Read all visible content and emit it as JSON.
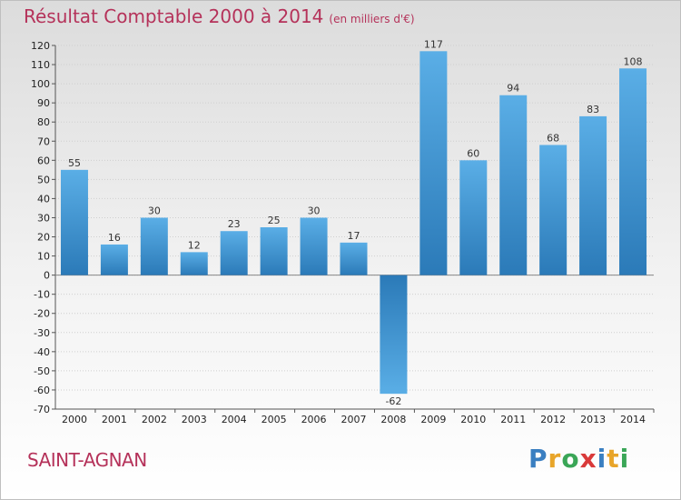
{
  "chart_data": {
    "type": "bar",
    "title": "Résultat Comptable 2000 à 2014",
    "subtitle": "(en milliers d'€)",
    "categories": [
      "2000",
      "2001",
      "2002",
      "2003",
      "2004",
      "2005",
      "2006",
      "2007",
      "2008",
      "2009",
      "2010",
      "2011",
      "2012",
      "2013",
      "2014"
    ],
    "values": [
      55,
      16,
      30,
      12,
      23,
      25,
      30,
      17,
      -62,
      117,
      60,
      94,
      68,
      83,
      108
    ],
    "value_labels": [
      "55",
      "16",
      "30",
      "12",
      "23",
      "25",
      "30",
      "17",
      "-62",
      "117",
      "60",
      "94",
      "68",
      "83",
      "108"
    ],
    "ylim": [
      -70,
      120
    ],
    "yticks": [
      120,
      110,
      100,
      90,
      80,
      70,
      60,
      50,
      40,
      30,
      20,
      10,
      0,
      -10,
      -20,
      -30,
      -40,
      -50,
      -60,
      -70
    ],
    "grid": true,
    "xlabel": "",
    "ylabel": ""
  },
  "commune": "SAINT-AGNAN",
  "logo": {
    "letters": [
      "P",
      "r",
      "o",
      "x",
      "i",
      "t",
      "i"
    ],
    "colors": [
      "#3a7fc1",
      "#e8a52a",
      "#3aa657",
      "#d93a3a",
      "#3a7fc1",
      "#e8a52a",
      "#3aa657"
    ]
  },
  "colors": {
    "bar_top": "#5aaee6",
    "bar_bottom": "#2b7ab8",
    "title": "#b5325a"
  }
}
